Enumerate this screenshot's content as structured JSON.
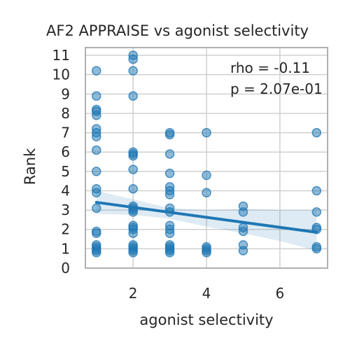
{
  "chart_data": {
    "type": "scatter",
    "title": "AF2 APPRAISE vs agonist selectivity",
    "xlabel": "agonist selectivity",
    "ylabel": "Rank",
    "xlim": [
      0.7,
      7.3
    ],
    "ylim": [
      0,
      11.4
    ],
    "x_ticks": [
      2,
      4,
      6
    ],
    "y_ticks": [
      0,
      1,
      2,
      3,
      4,
      5,
      6,
      7,
      8,
      9,
      10,
      11
    ],
    "grid": true,
    "annotations": [
      "rho = -0.11",
      "p = 2.07e-01"
    ],
    "points": [
      {
        "x": 1,
        "y": 10.2
      },
      {
        "x": 1,
        "y": 8.9
      },
      {
        "x": 1,
        "y": 8.2
      },
      {
        "x": 1,
        "y": 8.1
      },
      {
        "x": 1,
        "y": 7.9
      },
      {
        "x": 1,
        "y": 7.2
      },
      {
        "x": 1,
        "y": 7.0
      },
      {
        "x": 1,
        "y": 6.8
      },
      {
        "x": 1,
        "y": 6.1
      },
      {
        "x": 1,
        "y": 5.0
      },
      {
        "x": 1,
        "y": 4.1
      },
      {
        "x": 1,
        "y": 3.9
      },
      {
        "x": 1,
        "y": 3.1
      },
      {
        "x": 1,
        "y": 1.9
      },
      {
        "x": 1,
        "y": 1.8
      },
      {
        "x": 1,
        "y": 1.2
      },
      {
        "x": 1,
        "y": 1.1
      },
      {
        "x": 1,
        "y": 1.0
      },
      {
        "x": 1,
        "y": 0.9
      },
      {
        "x": 1,
        "y": 0.8
      },
      {
        "x": 2,
        "y": 11.0
      },
      {
        "x": 2,
        "y": 10.8
      },
      {
        "x": 2,
        "y": 10.2
      },
      {
        "x": 2,
        "y": 8.9
      },
      {
        "x": 2,
        "y": 6.0
      },
      {
        "x": 2,
        "y": 5.9
      },
      {
        "x": 2,
        "y": 5.8
      },
      {
        "x": 2,
        "y": 5.1
      },
      {
        "x": 2,
        "y": 4.1
      },
      {
        "x": 2,
        "y": 3.2
      },
      {
        "x": 2,
        "y": 3.1
      },
      {
        "x": 2,
        "y": 3.0
      },
      {
        "x": 2,
        "y": 2.9
      },
      {
        "x": 2,
        "y": 2.2
      },
      {
        "x": 2,
        "y": 2.1
      },
      {
        "x": 2,
        "y": 2.0
      },
      {
        "x": 2,
        "y": 1.8
      },
      {
        "x": 2,
        "y": 1.2
      },
      {
        "x": 2,
        "y": 1.1
      },
      {
        "x": 2,
        "y": 1.0
      },
      {
        "x": 2,
        "y": 0.9
      },
      {
        "x": 2,
        "y": 0.8
      },
      {
        "x": 3,
        "y": 7.0
      },
      {
        "x": 3,
        "y": 6.9
      },
      {
        "x": 3,
        "y": 5.9
      },
      {
        "x": 3,
        "y": 4.9
      },
      {
        "x": 3,
        "y": 4.2
      },
      {
        "x": 3,
        "y": 4.0
      },
      {
        "x": 3,
        "y": 3.8
      },
      {
        "x": 3,
        "y": 3.1
      },
      {
        "x": 3,
        "y": 2.9
      },
      {
        "x": 3,
        "y": 2.2
      },
      {
        "x": 3,
        "y": 2.0
      },
      {
        "x": 3,
        "y": 1.8
      },
      {
        "x": 3,
        "y": 1.2
      },
      {
        "x": 3,
        "y": 1.1
      },
      {
        "x": 3,
        "y": 1.0
      },
      {
        "x": 3,
        "y": 0.9
      },
      {
        "x": 3,
        "y": 0.8
      },
      {
        "x": 4,
        "y": 7.0
      },
      {
        "x": 4,
        "y": 4.8
      },
      {
        "x": 4,
        "y": 3.9
      },
      {
        "x": 4,
        "y": 1.1
      },
      {
        "x": 4,
        "y": 1.0
      },
      {
        "x": 4,
        "y": 0.9
      },
      {
        "x": 4,
        "y": 0.8
      },
      {
        "x": 5,
        "y": 3.2
      },
      {
        "x": 5,
        "y": 2.9
      },
      {
        "x": 5,
        "y": 2.1
      },
      {
        "x": 5,
        "y": 1.9
      },
      {
        "x": 5,
        "y": 1.2
      },
      {
        "x": 5,
        "y": 0.9
      },
      {
        "x": 7,
        "y": 7.0
      },
      {
        "x": 7,
        "y": 4.0
      },
      {
        "x": 7,
        "y": 2.9
      },
      {
        "x": 7,
        "y": 2.1
      },
      {
        "x": 7,
        "y": 2.0
      },
      {
        "x": 7,
        "y": 1.1
      },
      {
        "x": 7,
        "y": 1.0
      }
    ],
    "regression": {
      "x": [
        1,
        7
      ],
      "y": [
        3.4,
        1.85
      ]
    },
    "confidence_band": {
      "x": [
        1,
        2,
        3,
        4,
        5,
        6,
        7
      ],
      "lower": [
        2.8,
        2.75,
        2.55,
        2.15,
        1.8,
        1.4,
        0.9
      ],
      "upper": [
        4.0,
        3.55,
        3.1,
        3.0,
        3.05,
        3.0,
        3.0
      ]
    },
    "colors": {
      "points": "#1f77b4",
      "line": "#1f77b4",
      "band": "#1f77b4",
      "grid": "#d0d0d0",
      "frame": "#b0b0b0"
    }
  }
}
